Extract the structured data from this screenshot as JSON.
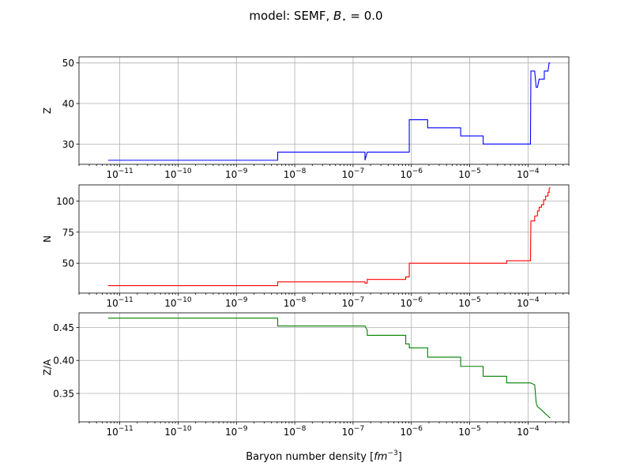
{
  "figure": {
    "title_prefix": "model: SEMF, ",
    "title_b": "B",
    "title_suffix": " = 0.0",
    "xlabel_prefix": "Baryon number density [",
    "xlabel_unit": "fm",
    "xlabel_exp": "−3",
    "xlabel_suffix": "]"
  },
  "chart_data": [
    {
      "type": "line",
      "ylabel": "Z",
      "color": "#0000ff",
      "xscale": "log",
      "xlim": [
        2e-12,
        0.0005
      ],
      "ylim": [
        25,
        51.5
      ],
      "yticks": [
        30,
        40,
        50
      ],
      "xticks": [
        -11,
        -10,
        -9,
        -8,
        -7,
        -6,
        -5,
        -4
      ],
      "grid": true,
      "series": [
        {
          "x": [
            6.3e-12,
            5.1e-09,
            5.1e-09,
            1.6e-07,
            1.6e-07,
            1.75e-07,
            1.75e-07,
            9.2e-07,
            9.2e-07,
            1.9e-06,
            1.9e-06,
            7e-06,
            7e-06,
            1.7e-05,
            1.7e-05,
            0.00011,
            0.000112,
            0.00013,
            0.000138,
            0.000145,
            0.000155,
            0.00019,
            0.00019,
            0.00022,
            0.00023,
            0.00024
          ],
          "y": [
            26,
            26,
            28,
            28,
            26,
            28,
            28,
            28,
            36,
            36,
            34,
            34,
            32,
            32,
            30,
            30,
            48,
            48,
            44,
            44,
            46,
            46,
            48,
            48,
            50,
            50
          ]
        }
      ]
    },
    {
      "type": "line",
      "ylabel": "N",
      "color": "#ff0000",
      "xscale": "log",
      "xlim": [
        2e-12,
        0.0005
      ],
      "ylim": [
        26,
        113
      ],
      "yticks": [
        50,
        75,
        100
      ],
      "xticks": [
        -11,
        -10,
        -9,
        -8,
        -7,
        -6,
        -5,
        -4
      ],
      "grid": true,
      "series": [
        {
          "x": [
            6.3e-12,
            5.1e-09,
            5.1e-09,
            1.6e-07,
            1.6e-07,
            1.75e-07,
            1.75e-07,
            8e-07,
            8e-07,
            9.2e-07,
            9.2e-07,
            4.3e-05,
            4.3e-05,
            0.00011,
            0.000112,
            0.00013,
            0.00013,
            0.000145,
            0.000145,
            0.000155,
            0.000155,
            0.00017,
            0.00017,
            0.000185,
            0.000185,
            0.0002,
            0.0002,
            0.00022,
            0.00022,
            0.00023,
            0.00023,
            0.00024
          ],
          "y": [
            32,
            32,
            35,
            35,
            34,
            34,
            37,
            37,
            39,
            39,
            50,
            50,
            52,
            52,
            84,
            84,
            88,
            88,
            92,
            92,
            95,
            95,
            97,
            97,
            101,
            101,
            104,
            104,
            107,
            107,
            110,
            111
          ]
        }
      ]
    },
    {
      "type": "line",
      "ylabel": "Z/A",
      "color": "#008000",
      "xscale": "log",
      "xlim": [
        2e-12,
        0.0005
      ],
      "ylim": [
        0.307,
        0.472
      ],
      "yticks": [
        0.35,
        0.4,
        0.45
      ],
      "xticks": [
        -11,
        -10,
        -9,
        -8,
        -7,
        -6,
        -5,
        -4
      ],
      "grid": true,
      "series": [
        {
          "x": [
            6.3e-12,
            5.1e-09,
            5.1e-09,
            1.6e-07,
            1.75e-07,
            1.75e-07,
            8e-07,
            8e-07,
            9.2e-07,
            9.2e-07,
            1.9e-06,
            1.9e-06,
            7e-06,
            7e-06,
            1.7e-05,
            1.7e-05,
            4.3e-05,
            4.3e-05,
            0.00011,
            0.00013,
            0.000138,
            0.000145,
            0.000155,
            0.00017,
            0.000185,
            0.0002,
            0.00022,
            0.00023,
            0.00024
          ],
          "y": [
            0.464,
            0.464,
            0.452,
            0.452,
            0.446,
            0.438,
            0.438,
            0.425,
            0.425,
            0.419,
            0.419,
            0.405,
            0.405,
            0.391,
            0.391,
            0.376,
            0.376,
            0.366,
            0.366,
            0.363,
            0.336,
            0.33,
            0.328,
            0.325,
            0.322,
            0.319,
            0.316,
            0.314,
            0.313
          ]
        }
      ]
    }
  ]
}
